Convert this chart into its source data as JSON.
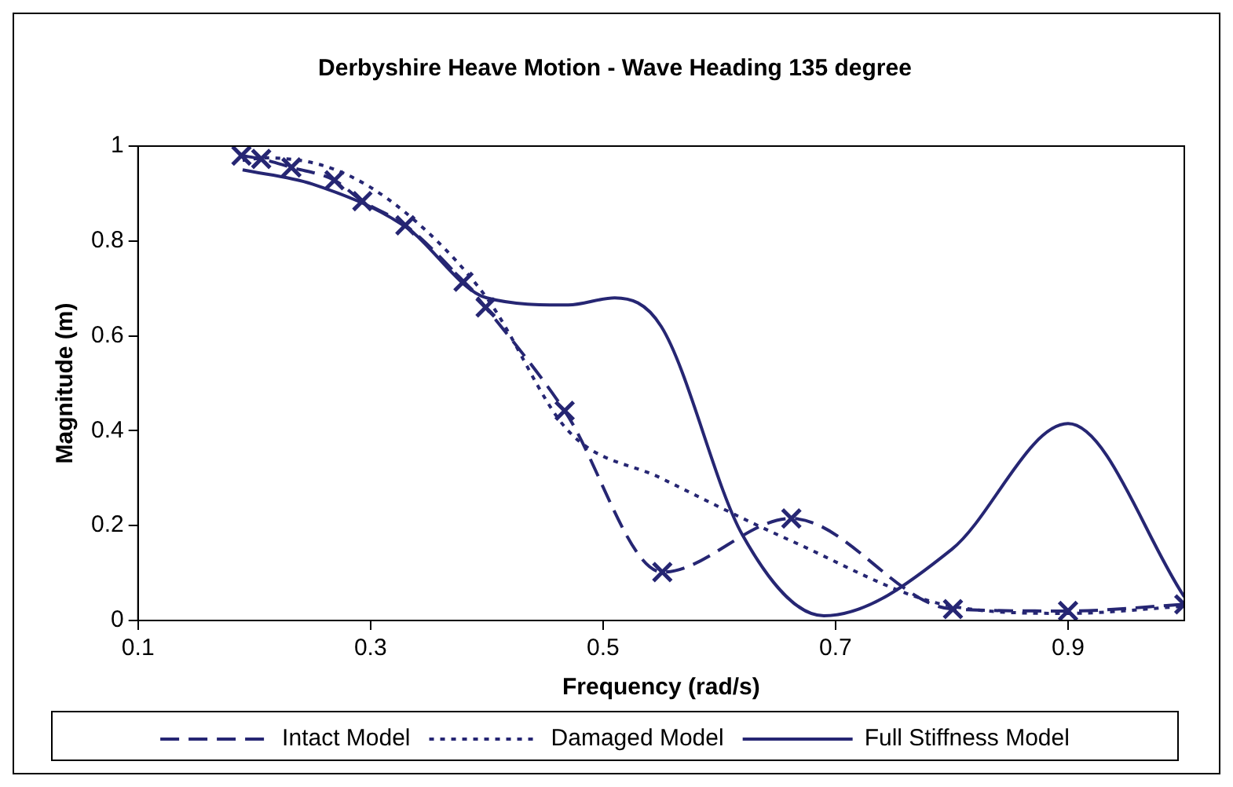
{
  "chart_data": {
    "type": "line",
    "title": "Derbyshire Heave Motion - Wave Heading 135 degree",
    "xlabel": "Frequency (rad/s)",
    "ylabel": "Magnitude (m)",
    "xlim": [
      0.1,
      1.0
    ],
    "xticks": [
      0.1,
      0.3,
      0.5,
      0.7,
      0.9
    ],
    "ylim": [
      0,
      1
    ],
    "yticks": [
      0,
      0.2,
      0.4,
      0.6,
      0.8,
      1
    ],
    "grid": false,
    "legend": "bottom",
    "series": [
      {
        "name": "Intact Model",
        "color": "#262673",
        "line_style": "dashed",
        "marker": "cross",
        "x": [
          0.189,
          0.206,
          0.232,
          0.269,
          0.293,
          0.33,
          0.38,
          0.399,
          0.467,
          0.551,
          0.662,
          0.801,
          0.9,
          1.0
        ],
        "values": [
          0.98,
          0.973,
          0.955,
          0.928,
          0.884,
          0.833,
          0.714,
          0.66,
          0.442,
          0.102,
          0.215,
          0.024,
          0.02,
          0.034
        ]
      },
      {
        "name": "Damaged Model",
        "color": "#262673",
        "line_style": "dotted",
        "marker": "none",
        "x": [
          0.19,
          0.21,
          0.27,
          0.33,
          0.4,
          0.47,
          0.55,
          0.66,
          0.8,
          0.9,
          1.0
        ],
        "values": [
          0.97,
          0.975,
          0.95,
          0.86,
          0.68,
          0.4,
          0.3,
          0.17,
          0.03,
          0.015,
          0.03
        ]
      },
      {
        "name": "Full Stiffness Model",
        "color": "#262673",
        "line_style": "solid",
        "marker": "none",
        "x": [
          0.19,
          0.25,
          0.33,
          0.4,
          0.47,
          0.51,
          0.55,
          0.62,
          0.69,
          0.8,
          0.9,
          1.0
        ],
        "values": [
          0.95,
          0.92,
          0.83,
          0.68,
          0.665,
          0.68,
          0.62,
          0.18,
          0.01,
          0.15,
          0.415,
          0.05
        ]
      }
    ]
  }
}
